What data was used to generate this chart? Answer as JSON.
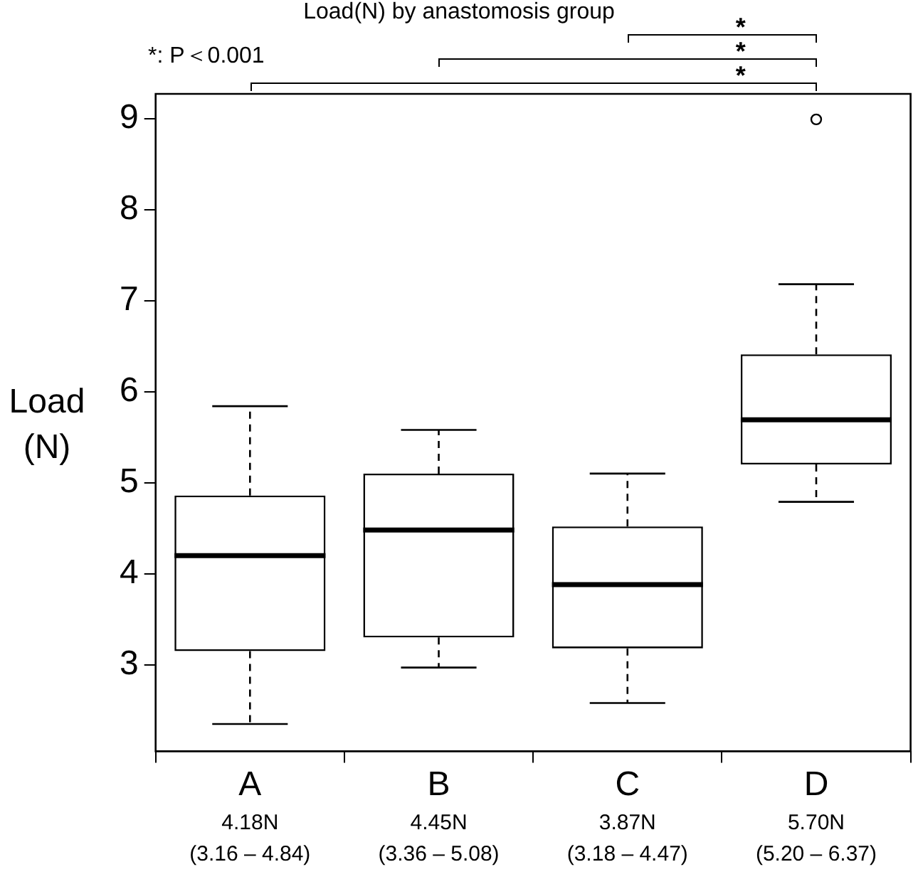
{
  "chart_data": {
    "type": "box",
    "title": "Load(N) by anastomosis group",
    "ylabel": "Load (N)",
    "categories": [
      "A",
      "B",
      "C",
      "D"
    ],
    "boxes": [
      {
        "low": 2.35,
        "q1": 3.15,
        "median": 4.2,
        "q3": 4.86,
        "high": 5.84
      },
      {
        "low": 2.97,
        "q1": 3.3,
        "median": 4.48,
        "q3": 5.1,
        "high": 5.58
      },
      {
        "low": 2.58,
        "q1": 3.18,
        "median": 3.88,
        "q3": 4.52,
        "high": 5.1
      },
      {
        "low": 4.79,
        "q1": 5.2,
        "median": 5.69,
        "q3": 6.41,
        "high": 7.18,
        "outliers": [
          8.99
        ]
      }
    ],
    "ylim": [
      2.05,
      9.27
    ],
    "yticks": [
      3,
      4,
      5,
      6,
      7,
      8,
      9
    ],
    "annotations": [
      "*: P＜0.001",
      "*",
      "*",
      "*",
      "4.18N",
      "(3.16 – 4.84)",
      "4.45N",
      "(3.36 – 5.08)",
      "3.87N",
      "(3.18 – 4.47)",
      "5.70N",
      "(5.20 – 6.37)"
    ]
  }
}
